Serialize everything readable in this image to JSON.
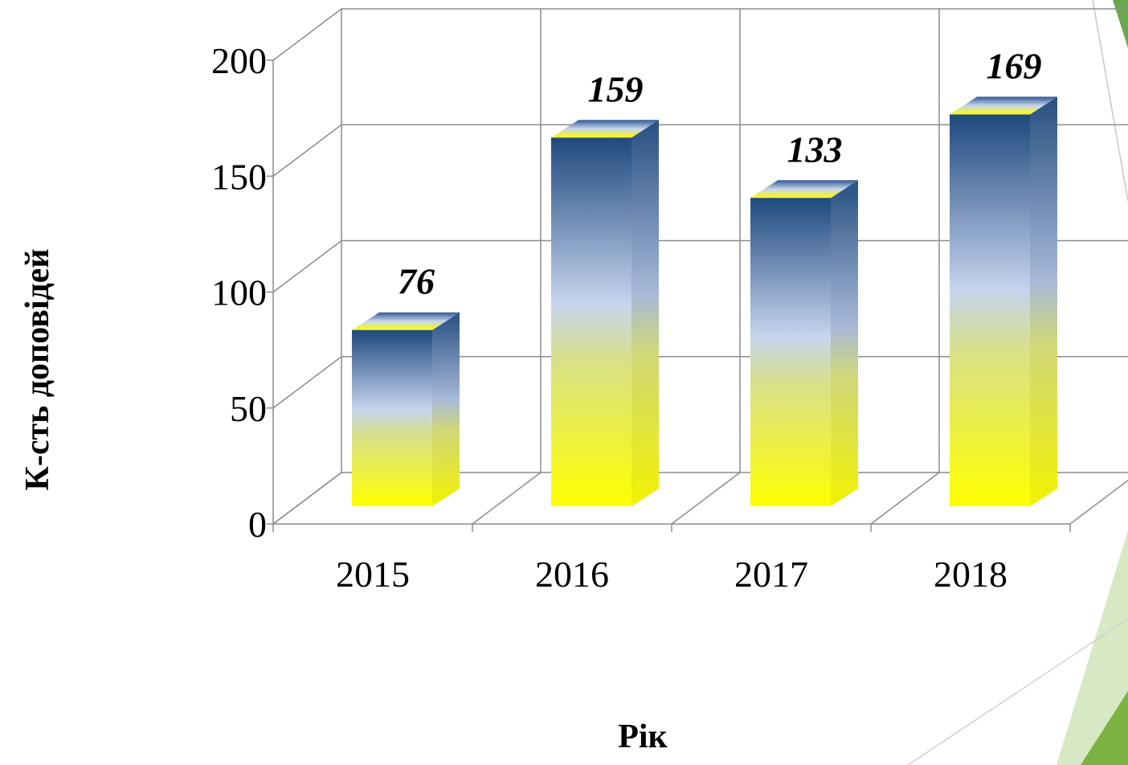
{
  "chart_data": {
    "type": "bar",
    "categories": [
      "2015",
      "2016",
      "2017",
      "2018"
    ],
    "values": [
      76,
      159,
      133,
      169
    ],
    "ylim": [
      0,
      200
    ],
    "yticks": [
      0,
      50,
      100,
      150,
      200
    ],
    "grid": true,
    "x_label": "Рік",
    "y_label": "К-сть доповідей"
  }
}
